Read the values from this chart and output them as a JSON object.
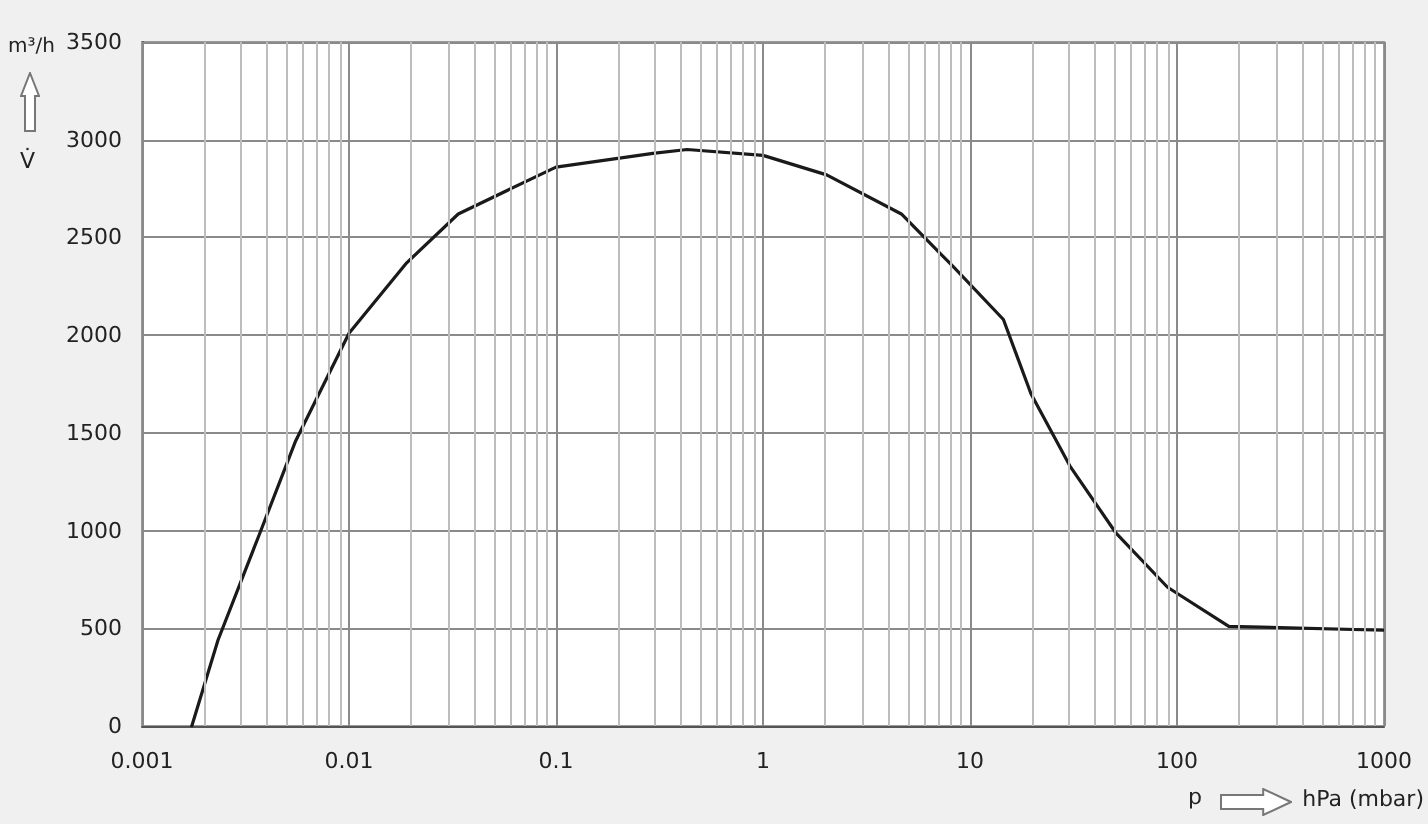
{
  "chart_data": {
    "type": "line",
    "xlabel": "hPa (mbar)",
    "ylabel": "m³/h",
    "annotations": [
      "V̇",
      "p"
    ],
    "x": [
      0.00174,
      0.00233,
      0.00372,
      0.00553,
      0.01,
      0.019,
      0.0337,
      0.1,
      0.294,
      0.43,
      1,
      2.03,
      4.66,
      8.3,
      14.5,
      19.7,
      30.4,
      50.5,
      90,
      178,
      1000
    ],
    "series": [
      {
        "color": "#1a1a1a",
        "values": [
          0,
          440,
          990,
          1460,
          2010,
          2370,
          2620,
          2860,
          2930,
          2950,
          2920,
          2820,
          2620,
          2350,
          2080,
          1700,
          1330,
          990,
          710,
          510,
          490
        ]
      }
    ],
    "xlim": [
      0.001,
      1000
    ],
    "xticks": [
      {
        "value": 0.001,
        "label": "0.001"
      },
      {
        "value": 0.002,
        "label": null
      },
      {
        "value": 0.003,
        "label": null
      },
      {
        "value": 0.004,
        "label": null
      },
      {
        "value": 0.005,
        "label": null
      },
      {
        "value": 0.006,
        "label": null
      },
      {
        "value": 0.007,
        "label": null
      },
      {
        "value": 0.008,
        "label": null
      },
      {
        "value": 0.009,
        "label": null
      },
      {
        "value": 0.01,
        "label": "0.01"
      },
      {
        "value": 0.02,
        "label": null
      },
      {
        "value": 0.03,
        "label": null
      },
      {
        "value": 0.04,
        "label": null
      },
      {
        "value": 0.05,
        "label": null
      },
      {
        "value": 0.06,
        "label": null
      },
      {
        "value": 0.07,
        "label": null
      },
      {
        "value": 0.08,
        "label": null
      },
      {
        "value": 0.09,
        "label": null
      },
      {
        "value": 0.1,
        "label": "0.1"
      },
      {
        "value": 0.2,
        "label": null
      },
      {
        "value": 0.3,
        "label": null
      },
      {
        "value": 0.4,
        "label": null
      },
      {
        "value": 0.5,
        "label": null
      },
      {
        "value": 0.6,
        "label": null
      },
      {
        "value": 0.7,
        "label": null
      },
      {
        "value": 0.8,
        "label": null
      },
      {
        "value": 0.9,
        "label": null
      },
      1,
      {
        "value": 2,
        "label": null
      },
      {
        "value": 3,
        "label": null
      },
      {
        "value": 4,
        "label": null
      },
      {
        "value": 5,
        "label": null
      },
      {
        "value": 6,
        "label": null
      },
      {
        "value": 7,
        "label": null
      },
      {
        "value": 8,
        "label": null
      },
      {
        "value": 9,
        "label": null
      },
      10,
      {
        "value": 20,
        "label": null
      },
      {
        "value": 30,
        "label": null
      },
      {
        "value": 40,
        "label": null
      },
      {
        "value": 50,
        "label": null
      },
      {
        "value": 60,
        "label": null
      },
      {
        "value": 70,
        "label": null
      },
      {
        "value": 80,
        "label": null
      },
      {
        "value": 90,
        "label": null
      },
      100,
      {
        "value": 200,
        "label": null
      },
      {
        "value": 300,
        "label": null
      },
      {
        "value": 400,
        "label": null
      },
      {
        "value": 500,
        "label": null
      },
      {
        "value": 600,
        "label": null
      },
      {
        "value": 700,
        "label": null
      },
      {
        "value": 800,
        "label": null
      },
      {
        "value": 900,
        "label": null
      },
      1000
    ],
    "ylim": [
      0,
      3500
    ],
    "yticks": [
      0,
      500,
      1000,
      1500,
      2000,
      2500,
      3000,
      3500
    ],
    "log": "x",
    "grid": true,
    "marker": "none",
    "line_style": "solid"
  }
}
